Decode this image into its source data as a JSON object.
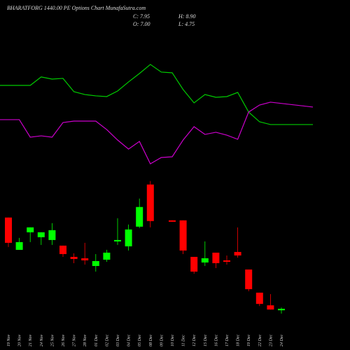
{
  "chart_data": {
    "type": "candlestick",
    "title": "BHARATFORG 1440.00  PE Options  Chart MunafaSutra.com",
    "ohlc_labels": [
      "C: 7.95",
      "O: 7.00",
      "H: 8.90",
      "L: 4.75"
    ],
    "categories": [
      "19 Nov",
      "20 Nov",
      "21 Nov",
      "24 Nov",
      "25 Nov",
      "26 Nov",
      "27 Nov",
      "28 Nov",
      "01 Dec",
      "02 Dec",
      "03 Dec",
      "04 Dec",
      "05 Dec",
      "08 Dec",
      "09 Dec",
      "10 Dec",
      "11 Dec",
      "12 Dec",
      "15 Dec",
      "16 Dec",
      "17 Dec",
      "18 Dec",
      "19 Dec",
      "22 Dec",
      "23 Dec",
      "24 Dec"
    ],
    "open": [
      69.7,
      47.85,
      59.73,
      56.4,
      54.5,
      50.7,
      43.1,
      42.15,
      36.93,
      41.2,
      53.55,
      50.23,
      63.53,
      92.03,
      null,
      67.8,
      67.8,
      43.1,
      39.3,
      45.95,
      40.73,
      46.43,
      34.55,
      18.88,
      10.33,
      7.0
    ],
    "high": [
      69.7,
      55.93,
      63.05,
      59.73,
      65.9,
      50.7,
      45.48,
      52.6,
      45.0,
      47.85,
      69.23,
      64.95,
      82.53,
      94.4,
      null,
      67.8,
      67.8,
      43.1,
      53.55,
      45.95,
      44.05,
      63.05,
      34.55,
      18.88,
      17.93,
      8.9
    ],
    "low": [
      49.75,
      47.85,
      53.08,
      51.18,
      51.18,
      43.1,
      38.83,
      37.88,
      33.13,
      39.78,
      51.18,
      47.38,
      62.58,
      63.05,
      null,
      66.85,
      45.0,
      31.7,
      36.93,
      35.5,
      37.88,
      42.63,
      19.83,
      9.85,
      7.48,
      4.75
    ],
    "close": [
      52.6,
      53.08,
      63.05,
      59.73,
      61.15,
      45.0,
      41.68,
      40.73,
      40.25,
      45.95,
      54.5,
      61.63,
      76.83,
      67.33,
      null,
      66.85,
      47.38,
      33.13,
      42.15,
      38.83,
      39.78,
      44.05,
      21.25,
      11.28,
      7.48,
      7.95
    ],
    "up_color": "#00ff00",
    "down_color": "#ff0000",
    "ylim": [
      0,
      98
    ],
    "y2lim": [
      0,
      100
    ],
    "series": [
      {
        "color": "#00cc00",
        "axis": "y2",
        "values": [
          75.3,
          75.3,
          75.3,
          82.4,
          80.6,
          81.2,
          70.0,
          67.6,
          66.5,
          65.9,
          70.6,
          78.2,
          85.3,
          92.9,
          86.5,
          85.9,
          71.8,
          60.6,
          67.6,
          65.3,
          65.9,
          69.4,
          52.9,
          44.7,
          42.4,
          42.4
        ]
      },
      {
        "color": "#cc00cc",
        "axis": "y2",
        "values": [
          46.5,
          46.5,
          31.8,
          32.9,
          31.8,
          44.1,
          45.3,
          45.3,
          45.3,
          38.2,
          29.4,
          21.8,
          28.2,
          9.4,
          14.7,
          15.3,
          29.4,
          40.6,
          34.1,
          35.9,
          33.5,
          30.0,
          52.9,
          58.8,
          61.2,
          57.1
        ]
      }
    ]
  }
}
